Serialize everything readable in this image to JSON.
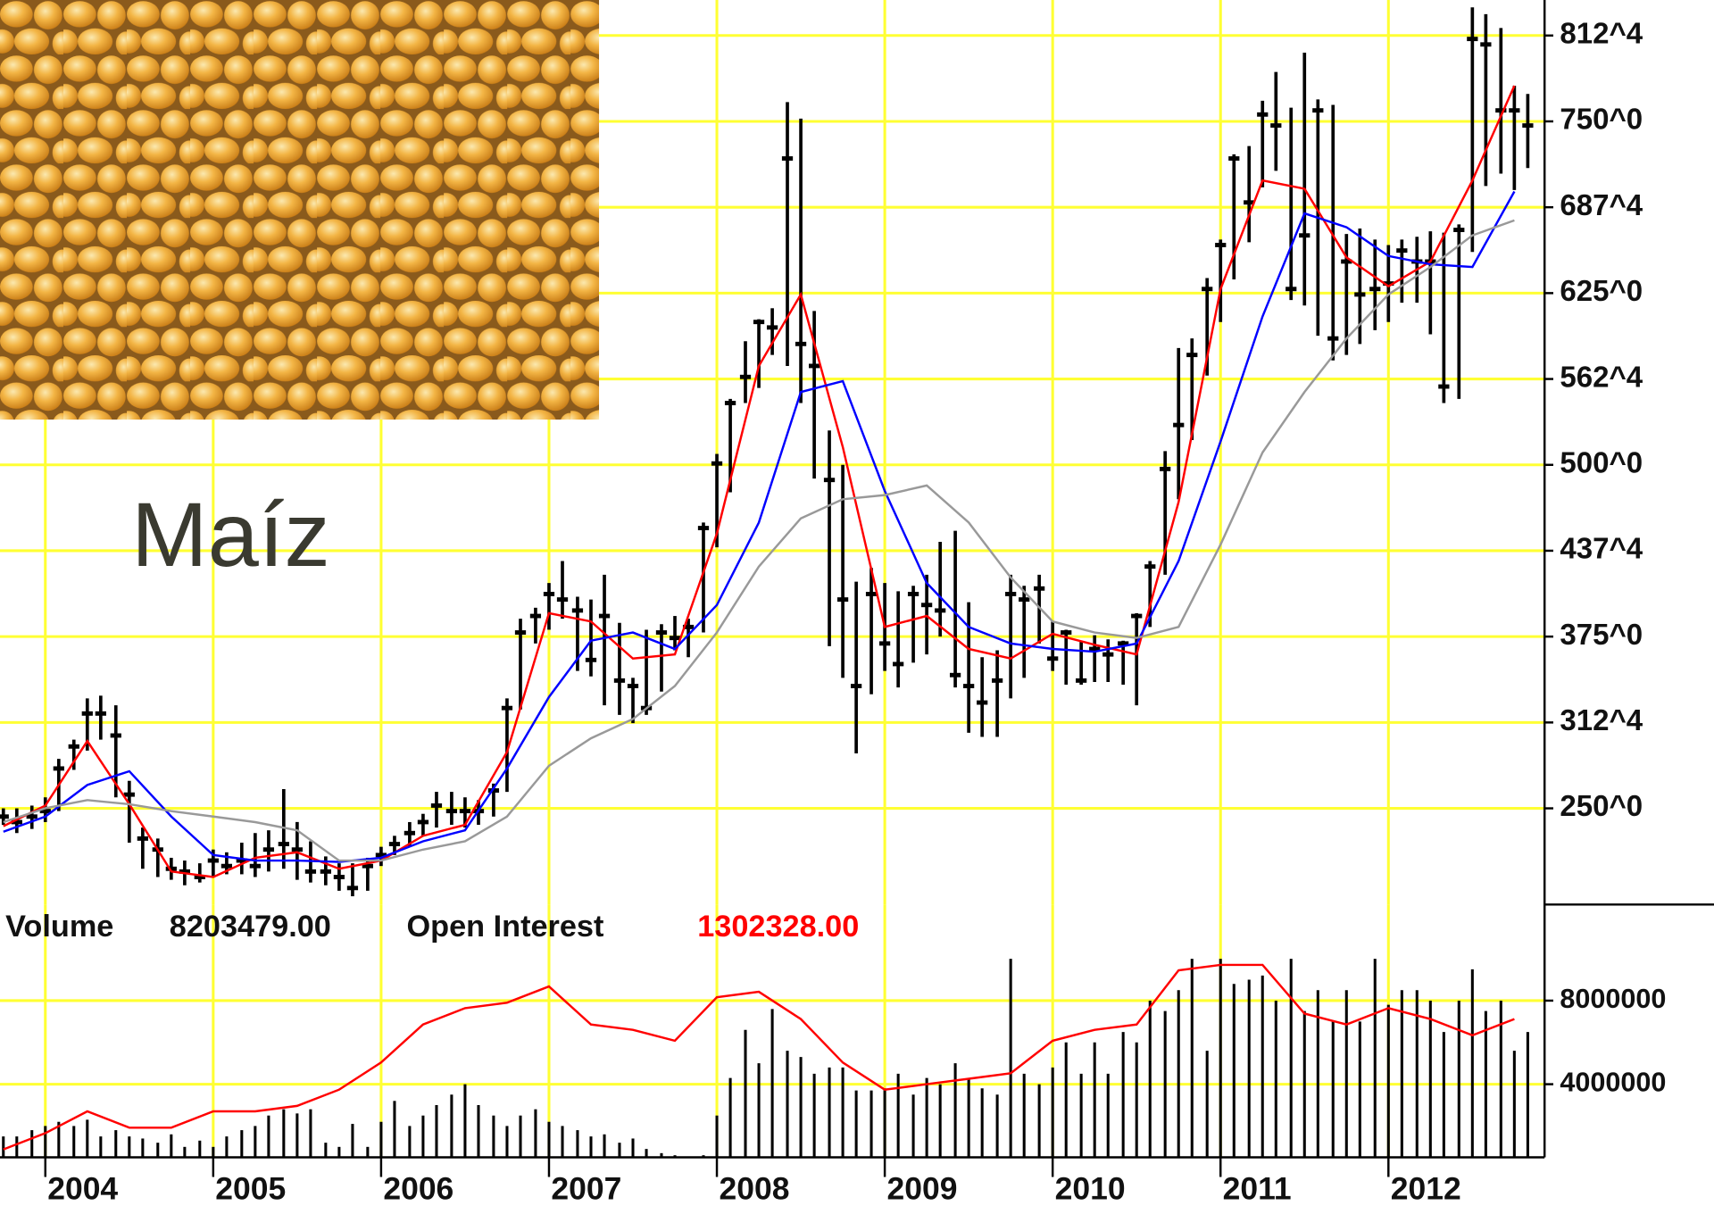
{
  "title": "Maíz",
  "stats": {
    "volume_label": "Volume",
    "volume": "8203479.00",
    "open_interest": "1302328.00"
  },
  "chart_data": [
    {
      "type": "ohlc",
      "color": "#000000",
      "grid": true,
      "xlim": [
        2003.73,
        2012.93
      ],
      "xticks": [
        2004,
        2005,
        2006,
        2007,
        2008,
        2009,
        2010,
        2011,
        2012
      ],
      "ylim": [
        180,
        832
      ],
      "yticks": [
        {
          "value": 812.5,
          "label": "812^4"
        },
        {
          "value": 750,
          "label": "750^0"
        },
        {
          "value": 687.5,
          "label": "687^4"
        },
        {
          "value": 625,
          "label": "625^0"
        },
        {
          "value": 562.5,
          "label": "562^4"
        },
        {
          "value": 500,
          "label": "500^0"
        },
        {
          "value": 437.5,
          "label": "437^4"
        },
        {
          "value": 375,
          "label": "375^0"
        },
        {
          "value": 312.5,
          "label": "312^4"
        },
        {
          "value": 250,
          "label": "250^0"
        }
      ],
      "x": [
        2003.75,
        2003.83,
        2003.92,
        2004,
        2004.08,
        2004.17,
        2004.25,
        2004.33,
        2004.42,
        2004.5,
        2004.58,
        2004.67,
        2004.75,
        2004.83,
        2004.92,
        2005,
        2005.08,
        2005.17,
        2005.25,
        2005.33,
        2005.42,
        2005.5,
        2005.58,
        2005.67,
        2005.75,
        2005.83,
        2005.92,
        2006,
        2006.08,
        2006.17,
        2006.25,
        2006.33,
        2006.42,
        2006.5,
        2006.58,
        2006.67,
        2006.75,
        2006.83,
        2006.92,
        2007,
        2007.08,
        2007.17,
        2007.25,
        2007.33,
        2007.42,
        2007.5,
        2007.58,
        2007.67,
        2007.75,
        2007.83,
        2007.92,
        2008,
        2008.08,
        2008.17,
        2008.25,
        2008.33,
        2008.42,
        2008.5,
        2008.58,
        2008.67,
        2008.75,
        2008.83,
        2008.92,
        2009,
        2009.08,
        2009.17,
        2009.25,
        2009.33,
        2009.42,
        2009.5,
        2009.58,
        2009.67,
        2009.75,
        2009.83,
        2009.92,
        2010,
        2010.08,
        2010.17,
        2010.25,
        2010.33,
        2010.42,
        2010.5,
        2010.58,
        2010.67,
        2010.75,
        2010.83,
        2010.92,
        2011,
        2011.08,
        2011.17,
        2011.25,
        2011.33,
        2011.42,
        2011.5,
        2011.58,
        2011.67,
        2011.75,
        2011.83,
        2011.92,
        2012,
        2012.08,
        2012.17,
        2012.25,
        2012.33,
        2012.42,
        2012.5,
        2012.58,
        2012.67,
        2012.75,
        2012.83
      ],
      "high": [
        250,
        250,
        252,
        258,
        286,
        300,
        330,
        332,
        325,
        270,
        236,
        228,
        214,
        212,
        210,
        220,
        218,
        225,
        232,
        234,
        264,
        240,
        226,
        215,
        210,
        210,
        214,
        222,
        230,
        240,
        246,
        262,
        262,
        258,
        256,
        268,
        330,
        388,
        396,
        414,
        430,
        404,
        402,
        420,
        385,
        345,
        380,
        384,
        390,
        388,
        458,
        508,
        548,
        590,
        606,
        614,
        764,
        752,
        612,
        525,
        500,
        415,
        425,
        414,
        408,
        412,
        420,
        444,
        452,
        400,
        360,
        365,
        420,
        412,
        420,
        386,
        380,
        372,
        376,
        373,
        372,
        392,
        430,
        510,
        585,
        592,
        636,
        664,
        726,
        732,
        765,
        786,
        760,
        800,
        766,
        762,
        668,
        672,
        664,
        660,
        664,
        666,
        670,
        669,
        675,
        833,
        828,
        818,
        776,
        770
      ],
      "low": [
        238,
        232,
        235,
        240,
        248,
        278,
        292,
        300,
        258,
        225,
        206,
        200,
        198,
        194,
        196,
        200,
        202,
        202,
        200,
        204,
        206,
        198,
        196,
        194,
        190,
        186,
        190,
        208,
        216,
        222,
        230,
        236,
        238,
        236,
        238,
        244,
        262,
        322,
        370,
        380,
        388,
        350,
        346,
        325,
        318,
        312,
        318,
        335,
        365,
        360,
        378,
        440,
        480,
        545,
        556,
        580,
        572,
        545,
        490,
        368,
        345,
        290,
        333,
        350,
        338,
        356,
        362,
        375,
        338,
        305,
        302,
        302,
        330,
        345,
        370,
        350,
        340,
        340,
        342,
        342,
        340,
        325,
        382,
        420,
        475,
        518,
        565,
        604,
        635,
        662,
        702,
        714,
        620,
        616,
        594,
        576,
        580,
        588,
        598,
        604,
        618,
        618,
        595,
        545,
        548,
        655,
        703,
        712,
        700,
        716
      ],
      "close": [
        244,
        240,
        244,
        248,
        279,
        295,
        319,
        319,
        303,
        260,
        228,
        220,
        206,
        204,
        200,
        212,
        208,
        212,
        208,
        220,
        224,
        220,
        204,
        204,
        200,
        192,
        208,
        216,
        224,
        232,
        240,
        252,
        248,
        248,
        248,
        263,
        323,
        378,
        390,
        406,
        402,
        394,
        358,
        390,
        343,
        339,
        323,
        378,
        374,
        382,
        454,
        501,
        545,
        564,
        604,
        600,
        723,
        588,
        572,
        489,
        402,
        339,
        406,
        370,
        355,
        406,
        398,
        394,
        347,
        339,
        327,
        343,
        406,
        402,
        410,
        359,
        378,
        343,
        366,
        362,
        370,
        390,
        426,
        497,
        529,
        580,
        628,
        660,
        723,
        691,
        755,
        747,
        628,
        667,
        758,
        592,
        648,
        624,
        628,
        632,
        656,
        648,
        648,
        557,
        671,
        810,
        806,
        758,
        758,
        747
      ],
      "lines": [
        {
          "color": "#ff0000",
          "x": [
            2003.75,
            2004,
            2004.25,
            2004.5,
            2004.75,
            2005,
            2005.25,
            2005.5,
            2005.75,
            2006,
            2006.25,
            2006.5,
            2006.75,
            2007,
            2007.25,
            2007.5,
            2007.75,
            2008,
            2008.25,
            2008.5,
            2008.75,
            2009,
            2009.25,
            2009.5,
            2009.75,
            2010,
            2010.25,
            2010.5,
            2010.75,
            2011,
            2011.25,
            2011.5,
            2011.75,
            2012,
            2012.25,
            2012.5,
            2012.75
          ],
          "values": [
            237,
            252,
            299,
            253,
            204,
            200,
            214,
            218,
            206,
            212,
            230,
            238,
            291,
            392,
            386,
            359,
            362,
            450,
            572,
            624,
            513,
            382,
            390,
            366,
            359,
            377,
            369,
            362,
            473,
            628,
            707,
            701,
            651,
            630,
            648,
            707,
            776
          ]
        },
        {
          "color": "#0000ff",
          "x": [
            2003.75,
            2004,
            2004.25,
            2004.5,
            2004.75,
            2005,
            2005.25,
            2005.5,
            2005.75,
            2006,
            2006.25,
            2006.5,
            2006.75,
            2007,
            2007.25,
            2007.5,
            2007.75,
            2008,
            2008.25,
            2008.5,
            2008.75,
            2009,
            2009.25,
            2009.5,
            2009.75,
            2010,
            2010.25,
            2010.5,
            2010.75,
            2011,
            2011.25,
            2011.5,
            2011.75,
            2012,
            2012.25,
            2012.5,
            2012.75
          ],
          "values": [
            233,
            244,
            267,
            277,
            244,
            216,
            212,
            212,
            211,
            214,
            226,
            234,
            279,
            331,
            372,
            378,
            366,
            398,
            458,
            553,
            561,
            481,
            414,
            382,
            370,
            366,
            364,
            370,
            430,
            517,
            608,
            683,
            673,
            652,
            646,
            644,
            699
          ]
        },
        {
          "color": "#999999",
          "x": [
            2003.75,
            2004,
            2004.25,
            2004.5,
            2004.75,
            2005,
            2005.25,
            2005.5,
            2005.75,
            2006,
            2006.25,
            2006.5,
            2006.75,
            2007,
            2007.25,
            2007.5,
            2007.75,
            2008,
            2008.25,
            2008.5,
            2008.75,
            2009,
            2009.25,
            2009.5,
            2009.75,
            2010,
            2010.25,
            2010.5,
            2010.75,
            2011,
            2011.25,
            2011.5,
            2011.75,
            2012,
            2012.25,
            2012.5,
            2012.75
          ],
          "values": [
            240,
            250,
            256,
            253,
            248,
            244,
            240,
            234,
            212,
            212,
            220,
            226,
            244,
            281,
            301,
            315,
            339,
            378,
            426,
            461,
            475,
            478,
            485,
            458,
            418,
            386,
            378,
            374,
            382,
            442,
            509,
            553,
            592,
            624,
            644,
            667,
            678
          ]
        }
      ]
    },
    {
      "type": "volume",
      "color": "#000000",
      "grid": true,
      "xlim": [
        2003.73,
        2012.93
      ],
      "xticks": [
        2004,
        2005,
        2006,
        2007,
        2008,
        2009,
        2010,
        2011,
        2012
      ],
      "ylim": [
        500000,
        12600000
      ],
      "yticks": [
        8000000,
        4000000
      ],
      "x": [
        2003.75,
        2003.83,
        2003.92,
        2004,
        2004.08,
        2004.17,
        2004.25,
        2004.33,
        2004.42,
        2004.5,
        2004.58,
        2004.67,
        2004.75,
        2004.83,
        2004.92,
        2005,
        2005.08,
        2005.17,
        2005.25,
        2005.33,
        2005.42,
        2005.5,
        2005.58,
        2005.67,
        2005.75,
        2005.83,
        2005.92,
        2006,
        2006.08,
        2006.17,
        2006.25,
        2006.33,
        2006.42,
        2006.5,
        2006.58,
        2006.67,
        2006.75,
        2006.83,
        2006.92,
        2007,
        2007.08,
        2007.17,
        2007.25,
        2007.33,
        2007.42,
        2007.5,
        2007.58,
        2007.67,
        2007.75,
        2007.83,
        2007.92,
        2008,
        2008.08,
        2008.17,
        2008.25,
        2008.33,
        2008.42,
        2008.5,
        2008.58,
        2008.67,
        2008.75,
        2008.83,
        2008.92,
        2009,
        2009.08,
        2009.17,
        2009.25,
        2009.33,
        2009.42,
        2009.5,
        2009.58,
        2009.67,
        2009.75,
        2009.83,
        2009.92,
        2010,
        2010.08,
        2010.17,
        2010.25,
        2010.33,
        2010.42,
        2010.5,
        2010.58,
        2010.67,
        2010.75,
        2010.83,
        2010.92,
        2011,
        2011.08,
        2011.17,
        2011.25,
        2011.33,
        2011.42,
        2011.5,
        2011.58,
        2011.67,
        2011.75,
        2011.83,
        2011.92,
        2012,
        2012.08,
        2012.17,
        2012.25,
        2012.33,
        2012.42,
        2012.5,
        2012.58,
        2012.67,
        2012.75,
        2012.83
      ],
      "values": [
        1500000,
        1500000,
        1800000,
        2000000,
        2200000,
        2000000,
        2300000,
        1500000,
        1800000,
        1500000,
        1400000,
        1200000,
        1600000,
        1000000,
        1300000,
        1000000,
        1500000,
        1800000,
        2000000,
        2500000,
        2800000,
        2600000,
        2800000,
        1200000,
        1000000,
        2100000,
        1000000,
        2200000,
        3200000,
        2000000,
        2500000,
        3000000,
        3500000,
        4000000,
        3000000,
        2500000,
        2000000,
        2500000,
        2800000,
        2200000,
        2000000,
        1800000,
        1500000,
        1600000,
        1200000,
        1400000,
        900000,
        700000,
        600000,
        500000,
        600000,
        2500000,
        4300000,
        6600000,
        5000000,
        7600000,
        5600000,
        5300000,
        4500000,
        4800000,
        4800000,
        3700000,
        3700000,
        3800000,
        4500000,
        3500000,
        4300000,
        4000000,
        5000000,
        4300000,
        3800000,
        3500000,
        10000000,
        4500000,
        4000000,
        4800000,
        6000000,
        4500000,
        6000000,
        4500000,
        6500000,
        6000000,
        8000000,
        7500000,
        8500000,
        10000000,
        5600000,
        10000000,
        8800000,
        9000000,
        9200000,
        8000000,
        10000000,
        7500000,
        8500000,
        7000000,
        8500000,
        7000000,
        10000000,
        7800000,
        8500000,
        8500000,
        8000000,
        6500000,
        8000000,
        9500000,
        7500000,
        8000000,
        5600000,
        6500000
      ],
      "lines": [
        {
          "name": "Open Interest",
          "color": "#ff0000",
          "x": [
            2003.75,
            2004,
            2004.25,
            2004.5,
            2004.75,
            2005,
            2005.25,
            2005.5,
            2005.75,
            2006,
            2006.25,
            2006.5,
            2006.75,
            2007,
            2007.25,
            2007.5,
            2007.75,
            2008,
            2008.25,
            2008.5,
            2008.75,
            2009,
            2009.25,
            2009.5,
            2009.75,
            2010,
            2010.25,
            2010.5,
            2010.75,
            2011,
            2011.25,
            2011.5,
            2011.75,
            2012,
            2012.25,
            2012.5,
            2012.75
          ],
          "values": [
            880000,
            1660000,
            2700000,
            1920000,
            1920000,
            2700000,
            2700000,
            2960000,
            3740000,
            5040000,
            6860000,
            7640000,
            7900000,
            8680000,
            6860000,
            6600000,
            6080000,
            8160000,
            8420000,
            7120000,
            5040000,
            3740000,
            4000000,
            4260000,
            4520000,
            6080000,
            6600000,
            6860000,
            9450000,
            9710000,
            9710000,
            7380000,
            6860000,
            7640000,
            7120000,
            6340000,
            7120000
          ]
        }
      ]
    }
  ]
}
